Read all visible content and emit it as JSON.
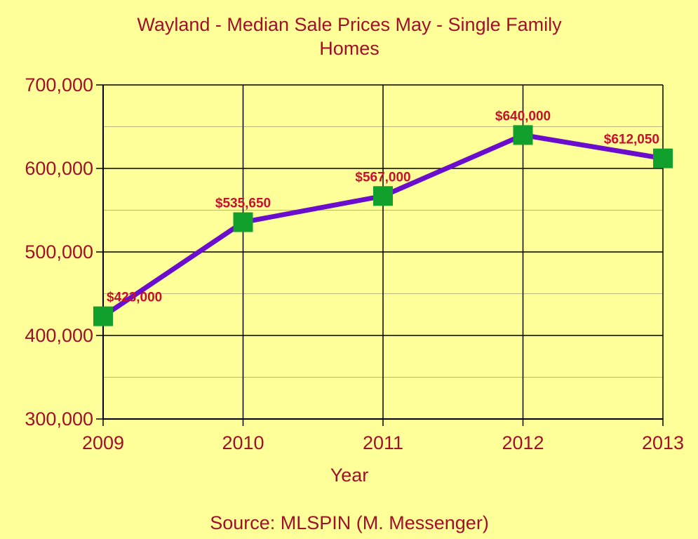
{
  "chart_data": {
    "type": "line",
    "title_line1": "Wayland - Median Sale Prices May - Single Family",
    "title_line2": "Homes",
    "xlabel": "Year",
    "ylabel": "",
    "categories": [
      "2009",
      "2010",
      "2011",
      "2012",
      "2013"
    ],
    "series": [
      {
        "values": [
          423000,
          535650,
          567000,
          640000,
          612050
        ]
      }
    ],
    "data_labels": [
      "$423,000",
      "$535,650",
      "$567,000",
      "$640,000",
      "$612,050"
    ],
    "y_ticks": [
      "300,000",
      "400,000",
      "500,000",
      "600,000",
      "700,000"
    ],
    "ylim": [
      300000,
      700000
    ],
    "grid": true,
    "source": "Source: MLSPIN (M. Messenger)",
    "colors": {
      "background": "#ffff99",
      "line": "#6a0dcc",
      "marker": "#12a02c",
      "text": "#a0102a",
      "data_label": "#c8102e",
      "major_grid": "#000000",
      "minor_grid": "#b8b87a"
    }
  }
}
